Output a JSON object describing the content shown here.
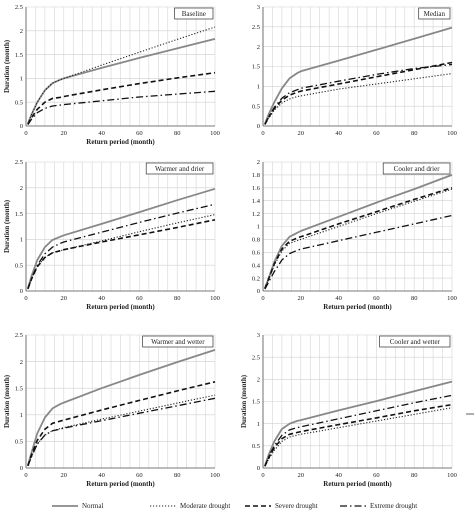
{
  "legend": [
    {
      "name": "Normal",
      "color": "#888888",
      "dash": "solid"
    },
    {
      "name": "Moderate drought",
      "color": "#222222",
      "dash": "dot"
    },
    {
      "name": "Severe drought",
      "color": "#111111",
      "dash": "dash"
    },
    {
      "name": "Extreme drought",
      "color": "#111111",
      "dash": "dashdot"
    }
  ],
  "chart_data": [
    {
      "type": "line",
      "title": "Baseline",
      "xlabel": "Return period (month)",
      "ylabel": "Duration (month)",
      "xlim": [
        0,
        100
      ],
      "ylim": [
        0,
        2.5
      ],
      "xticks": [
        0,
        20,
        40,
        60,
        80,
        100
      ],
      "yticks": [
        0,
        0.5,
        1,
        1.5,
        2,
        2.5
      ],
      "grid": true,
      "x": [
        1,
        3,
        6,
        10,
        14,
        18,
        20,
        40,
        60,
        80,
        100
      ],
      "series": [
        {
          "name": "Normal",
          "values": [
            0.05,
            0.25,
            0.5,
            0.75,
            0.9,
            0.97,
            1.0,
            1.22,
            1.43,
            1.63,
            1.83
          ]
        },
        {
          "name": "Moderate drought",
          "values": [
            0.05,
            0.25,
            0.5,
            0.75,
            0.9,
            0.97,
            1.0,
            1.28,
            1.55,
            1.82,
            2.08
          ]
        },
        {
          "name": "Severe drought",
          "values": [
            0.04,
            0.18,
            0.35,
            0.5,
            0.58,
            0.6,
            0.62,
            0.76,
            0.89,
            1.01,
            1.12
          ]
        },
        {
          "name": "Extreme drought",
          "values": [
            0.03,
            0.15,
            0.28,
            0.37,
            0.42,
            0.44,
            0.45,
            0.53,
            0.61,
            0.67,
            0.73
          ]
        }
      ]
    },
    {
      "type": "line",
      "title": "Median",
      "xlabel": "",
      "ylabel": "",
      "xlim": [
        0,
        100
      ],
      "ylim": [
        0,
        3
      ],
      "xticks": [
        0,
        20,
        40,
        60,
        80,
        100
      ],
      "yticks": [
        0,
        0.5,
        1,
        1.5,
        2,
        2.5,
        3
      ],
      "grid": true,
      "x": [
        1,
        3,
        6,
        10,
        14,
        18,
        20,
        40,
        60,
        80,
        100
      ],
      "series": [
        {
          "name": "Normal",
          "values": [
            0.05,
            0.3,
            0.6,
            0.95,
            1.2,
            1.33,
            1.38,
            1.65,
            1.92,
            2.2,
            2.48
          ]
        },
        {
          "name": "Moderate drought",
          "values": [
            0.04,
            0.2,
            0.4,
            0.58,
            0.68,
            0.74,
            0.76,
            0.93,
            1.06,
            1.19,
            1.32
          ]
        },
        {
          "name": "Severe drought",
          "values": [
            0.04,
            0.22,
            0.44,
            0.65,
            0.78,
            0.85,
            0.88,
            1.06,
            1.24,
            1.42,
            1.6
          ]
        },
        {
          "name": "Extreme drought",
          "values": [
            0.04,
            0.24,
            0.47,
            0.7,
            0.84,
            0.91,
            0.95,
            1.13,
            1.3,
            1.45,
            1.55
          ]
        }
      ]
    },
    {
      "type": "line",
      "title": "Warmer and drier",
      "xlabel": "Return period (month)",
      "ylabel": "Duration (month)",
      "xlim": [
        0,
        100
      ],
      "ylim": [
        0,
        2.5
      ],
      "xticks": [
        0,
        20,
        40,
        60,
        80,
        100
      ],
      "yticks": [
        0,
        0.5,
        1,
        1.5,
        2,
        2.5
      ],
      "grid": true,
      "x": [
        1,
        3,
        6,
        10,
        14,
        18,
        20,
        40,
        60,
        80,
        100
      ],
      "series": [
        {
          "name": "Normal",
          "values": [
            0.05,
            0.3,
            0.6,
            0.85,
            0.99,
            1.05,
            1.08,
            1.3,
            1.53,
            1.76,
            1.98
          ]
        },
        {
          "name": "Moderate drought",
          "values": [
            0.04,
            0.24,
            0.47,
            0.65,
            0.74,
            0.78,
            0.8,
            0.97,
            1.15,
            1.32,
            1.48
          ]
        },
        {
          "name": "Severe drought",
          "values": [
            0.04,
            0.24,
            0.47,
            0.65,
            0.74,
            0.78,
            0.8,
            0.95,
            1.09,
            1.23,
            1.38
          ]
        },
        {
          "name": "Extreme drought",
          "values": [
            0.04,
            0.25,
            0.5,
            0.72,
            0.85,
            0.92,
            0.95,
            1.14,
            1.33,
            1.51,
            1.68
          ]
        }
      ]
    },
    {
      "type": "line",
      "title": "Cooler and drier",
      "xlabel": "Return period (month)",
      "ylabel": "",
      "xlim": [
        0,
        100
      ],
      "ylim": [
        0,
        2
      ],
      "xticks": [
        0,
        20,
        40,
        60,
        80,
        100
      ],
      "yticks": [
        0,
        0.2,
        0.4,
        0.6,
        0.8,
        1,
        1.2,
        1.4,
        1.6,
        1.8,
        2
      ],
      "grid": true,
      "x": [
        1,
        3,
        6,
        10,
        14,
        18,
        20,
        40,
        60,
        80,
        100
      ],
      "series": [
        {
          "name": "Normal",
          "values": [
            0.04,
            0.2,
            0.45,
            0.7,
            0.84,
            0.9,
            0.93,
            1.15,
            1.37,
            1.58,
            1.8
          ]
        },
        {
          "name": "Moderate drought",
          "values": [
            0.04,
            0.18,
            0.4,
            0.62,
            0.74,
            0.78,
            0.8,
            1.0,
            1.2,
            1.39,
            1.58
          ]
        },
        {
          "name": "Severe drought",
          "values": [
            0.04,
            0.19,
            0.42,
            0.65,
            0.77,
            0.82,
            0.84,
            1.04,
            1.23,
            1.42,
            1.6
          ]
        },
        {
          "name": "Extreme drought",
          "values": [
            0.03,
            0.14,
            0.3,
            0.48,
            0.58,
            0.63,
            0.65,
            0.78,
            0.91,
            1.04,
            1.17
          ]
        }
      ]
    },
    {
      "type": "line",
      "title": "Warmer and wetter",
      "xlabel": "Return period (month)",
      "ylabel": "Duration (month)",
      "xlim": [
        0,
        100
      ],
      "ylim": [
        0,
        2.5
      ],
      "xticks": [
        0,
        20,
        40,
        60,
        80,
        100
      ],
      "yticks": [
        0,
        0.5,
        1,
        1.5,
        2,
        2.5
      ],
      "grid": true,
      "x": [
        1,
        3,
        6,
        10,
        14,
        18,
        20,
        40,
        60,
        80,
        100
      ],
      "series": [
        {
          "name": "Normal",
          "values": [
            0.05,
            0.3,
            0.65,
            0.95,
            1.12,
            1.2,
            1.23,
            1.5,
            1.75,
            1.99,
            2.22
          ]
        },
        {
          "name": "Moderate drought",
          "values": [
            0.04,
            0.22,
            0.45,
            0.62,
            0.7,
            0.74,
            0.76,
            0.92,
            1.07,
            1.22,
            1.37
          ]
        },
        {
          "name": "Severe drought",
          "values": [
            0.04,
            0.26,
            0.52,
            0.73,
            0.84,
            0.88,
            0.9,
            1.09,
            1.27,
            1.45,
            1.62
          ]
        },
        {
          "name": "Extreme drought",
          "values": [
            0.04,
            0.22,
            0.45,
            0.62,
            0.7,
            0.73,
            0.75,
            0.89,
            1.03,
            1.17,
            1.31
          ]
        }
      ]
    },
    {
      "type": "line",
      "title": "Cooler and wetter",
      "xlabel": "Return period (month)",
      "ylabel": "Duration (month)",
      "xlim": [
        0,
        100
      ],
      "ylim": [
        0,
        3
      ],
      "xticks": [
        0,
        20,
        40,
        60,
        80,
        100
      ],
      "yticks": [
        0,
        0.5,
        1,
        1.5,
        2,
        2.5,
        3
      ],
      "grid": true,
      "x": [
        1,
        3,
        6,
        10,
        14,
        18,
        20,
        40,
        60,
        80,
        100
      ],
      "series": [
        {
          "name": "Normal",
          "values": [
            0.05,
            0.3,
            0.6,
            0.88,
            1.0,
            1.06,
            1.08,
            1.3,
            1.51,
            1.73,
            1.95
          ]
        },
        {
          "name": "Moderate drought",
          "values": [
            0.04,
            0.2,
            0.4,
            0.6,
            0.7,
            0.74,
            0.76,
            0.91,
            1.06,
            1.21,
            1.36
          ]
        },
        {
          "name": "Severe drought",
          "values": [
            0.04,
            0.23,
            0.46,
            0.66,
            0.76,
            0.8,
            0.82,
            0.98,
            1.13,
            1.29,
            1.43
          ]
        },
        {
          "name": "Extreme drought",
          "values": [
            0.04,
            0.25,
            0.5,
            0.74,
            0.86,
            0.91,
            0.93,
            1.11,
            1.29,
            1.47,
            1.64
          ]
        }
      ]
    }
  ]
}
